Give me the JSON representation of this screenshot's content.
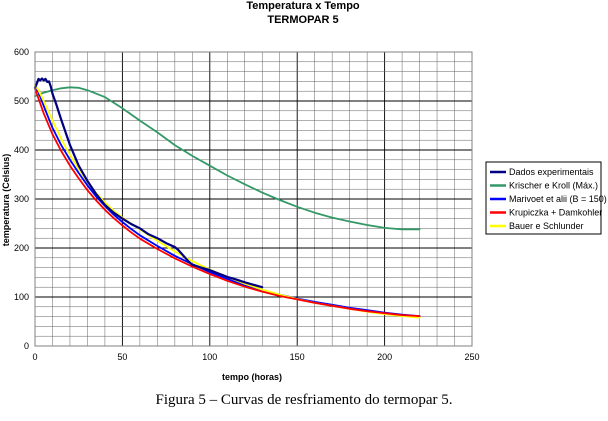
{
  "chart_data": {
    "type": "line",
    "title": "Temperatura x Tempo",
    "subtitle": "TERMOPAR 5",
    "xlabel": "tempo (horas)",
    "ylabel": "temperatura (Celsius)",
    "xlim": [
      0,
      250
    ],
    "ylim": [
      0,
      600
    ],
    "x_ticks": [
      "0",
      "50",
      "100",
      "150",
      "200",
      "250"
    ],
    "y_ticks": [
      "0",
      "100",
      "200",
      "300",
      "400",
      "500",
      "600"
    ],
    "grid": true,
    "legend_position": "right",
    "series": [
      {
        "name": "Dados experimentais",
        "color": "#000080",
        "points": [
          [
            0,
            527
          ],
          [
            1,
            535
          ],
          [
            2,
            545
          ],
          [
            3,
            542
          ],
          [
            4,
            546
          ],
          [
            5,
            542
          ],
          [
            6,
            545
          ],
          [
            7,
            539
          ],
          [
            8,
            540
          ],
          [
            9,
            530
          ],
          [
            10,
            515
          ],
          [
            12,
            495
          ],
          [
            15,
            462
          ],
          [
            20,
            410
          ],
          [
            25,
            368
          ],
          [
            30,
            337
          ],
          [
            35,
            310
          ],
          [
            40,
            288
          ],
          [
            45,
            272
          ],
          [
            50,
            260
          ],
          [
            55,
            249
          ],
          [
            60,
            240
          ],
          [
            65,
            228
          ],
          [
            70,
            220
          ],
          [
            75,
            210
          ],
          [
            80,
            202
          ],
          [
            82,
            196
          ],
          [
            84,
            188
          ],
          [
            86,
            180
          ],
          [
            88,
            172
          ],
          [
            90,
            166
          ],
          [
            95,
            160
          ],
          [
            100,
            155
          ],
          [
            105,
            148
          ],
          [
            110,
            141
          ],
          [
            115,
            136
          ],
          [
            120,
            130
          ],
          [
            125,
            125
          ],
          [
            130,
            120
          ]
        ]
      },
      {
        "name": "Krischer e Kroll (Máx.)",
        "color": "#339966",
        "points": [
          [
            0,
            510
          ],
          [
            5,
            517
          ],
          [
            10,
            522
          ],
          [
            15,
            526
          ],
          [
            20,
            528
          ],
          [
            25,
            527
          ],
          [
            30,
            522
          ],
          [
            40,
            508
          ],
          [
            50,
            485
          ],
          [
            60,
            460
          ],
          [
            70,
            436
          ],
          [
            80,
            410
          ],
          [
            90,
            388
          ],
          [
            100,
            368
          ],
          [
            110,
            348
          ],
          [
            120,
            330
          ],
          [
            130,
            313
          ],
          [
            140,
            298
          ],
          [
            150,
            284
          ],
          [
            160,
            272
          ],
          [
            170,
            262
          ],
          [
            180,
            254
          ],
          [
            190,
            247
          ],
          [
            200,
            241
          ],
          [
            210,
            238
          ],
          [
            220,
            238
          ]
        ]
      },
      {
        "name": "Marivoet et alii (B = 150)",
        "color": "#0000ff",
        "points": [
          [
            0,
            528
          ],
          [
            2,
            518
          ],
          [
            5,
            490
          ],
          [
            10,
            445
          ],
          [
            15,
            410
          ],
          [
            20,
            380
          ],
          [
            25,
            353
          ],
          [
            30,
            328
          ],
          [
            35,
            305
          ],
          [
            40,
            286
          ],
          [
            45,
            268
          ],
          [
            50,
            253
          ],
          [
            55,
            239
          ],
          [
            60,
            226
          ],
          [
            70,
            204
          ],
          [
            80,
            184
          ],
          [
            90,
            167
          ],
          [
            100,
            151
          ],
          [
            110,
            137
          ],
          [
            120,
            124
          ],
          [
            130,
            114
          ],
          [
            140,
            105
          ],
          [
            150,
            97
          ],
          [
            160,
            90
          ],
          [
            170,
            84
          ],
          [
            180,
            78
          ],
          [
            190,
            73
          ],
          [
            200,
            68
          ],
          [
            210,
            64
          ],
          [
            220,
            61
          ]
        ]
      },
      {
        "name": "Krupiczka + Damkohler",
        "color": "#ff0000",
        "points": [
          [
            0,
            525
          ],
          [
            2,
            505
          ],
          [
            5,
            475
          ],
          [
            10,
            432
          ],
          [
            15,
            398
          ],
          [
            20,
            368
          ],
          [
            25,
            342
          ],
          [
            30,
            318
          ],
          [
            35,
            297
          ],
          [
            40,
            278
          ],
          [
            45,
            261
          ],
          [
            50,
            246
          ],
          [
            55,
            232
          ],
          [
            60,
            219
          ],
          [
            70,
            198
          ],
          [
            80,
            179
          ],
          [
            90,
            162
          ],
          [
            100,
            147
          ],
          [
            110,
            133
          ],
          [
            120,
            121
          ],
          [
            130,
            111
          ],
          [
            140,
            102
          ],
          [
            150,
            95
          ],
          [
            160,
            88
          ],
          [
            170,
            82
          ],
          [
            180,
            76
          ],
          [
            190,
            71
          ],
          [
            200,
            67
          ],
          [
            210,
            63
          ],
          [
            220,
            61
          ]
        ]
      },
      {
        "name": "Bauer e Schlunder",
        "color": "#ffff00",
        "points": [
          [
            0,
            532
          ],
          [
            2,
            522
          ],
          [
            5,
            500
          ],
          [
            10,
            460
          ],
          [
            15,
            422
          ],
          [
            20,
            390
          ],
          [
            25,
            361
          ],
          [
            30,
            335
          ],
          [
            35,
            312
          ],
          [
            40,
            293
          ],
          [
            45,
            276
          ],
          [
            50,
            262
          ],
          [
            55,
            250
          ],
          [
            60,
            238
          ],
          [
            70,
            215
          ],
          [
            80,
            193
          ],
          [
            90,
            173
          ],
          [
            100,
            156
          ],
          [
            110,
            141
          ],
          [
            120,
            127
          ],
          [
            130,
            115
          ],
          [
            140,
            105
          ],
          [
            150,
            96
          ],
          [
            160,
            88
          ],
          [
            170,
            82
          ],
          [
            180,
            76
          ],
          [
            190,
            70
          ],
          [
            200,
            65
          ],
          [
            210,
            61
          ],
          [
            220,
            58
          ]
        ]
      }
    ]
  },
  "caption": "Figura 5 – Curvas de resfriamento do termopar 5."
}
